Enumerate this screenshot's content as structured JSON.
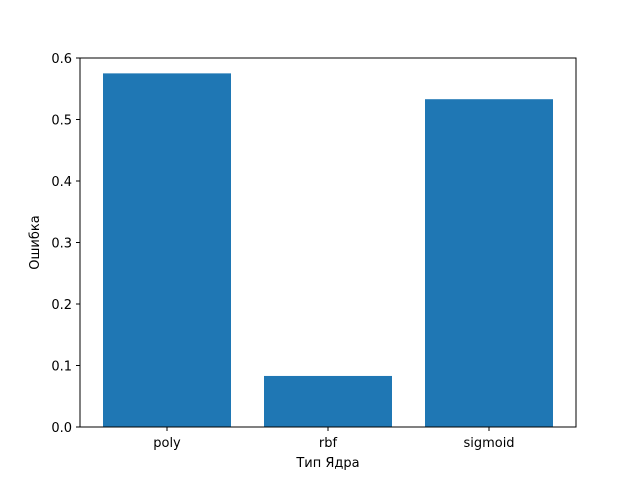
{
  "chart_data": {
    "type": "bar",
    "title": "",
    "xlabel": "Тип Ядра",
    "ylabel": "Ошибка",
    "categories": [
      "poly",
      "rbf",
      "sigmoid"
    ],
    "values": [
      0.575,
      0.083,
      0.533
    ],
    "ylim": [
      0,
      0.6
    ],
    "yticks": [
      0.0,
      0.1,
      0.2,
      0.3,
      0.4,
      0.5,
      0.6
    ],
    "ytick_labels": [
      "0.0",
      "0.1",
      "0.2",
      "0.3",
      "0.4",
      "0.5",
      "0.6"
    ],
    "bar_color": "#1f77b4",
    "grid": false,
    "legend": "none"
  }
}
